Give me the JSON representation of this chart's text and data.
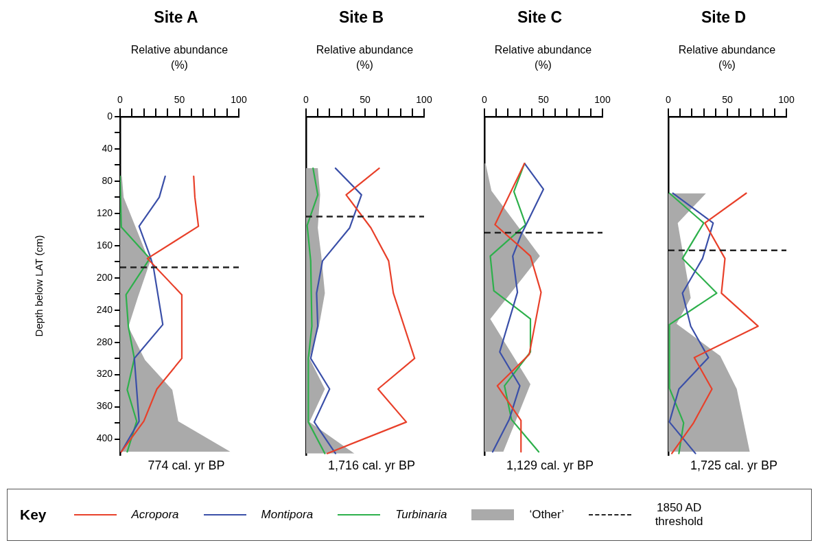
{
  "chart_data": [
    {
      "type": "line",
      "title": "Site A",
      "xlabel": "Relative abundance (%)",
      "ylabel": "Depth below LAT (cm)",
      "legend": "bottom",
      "legend_title": "Key",
      "grid": false,
      "xlim": [
        0,
        100
      ],
      "xticks": [
        0,
        {
          "value": 10,
          "label": null
        },
        {
          "value": 20,
          "label": null
        },
        {
          "value": 30,
          "label": null
        },
        {
          "value": 40,
          "label": null
        },
        50,
        {
          "value": 60,
          "label": null
        },
        {
          "value": 70,
          "label": null
        },
        {
          "value": 80,
          "label": null
        },
        {
          "value": 90,
          "label": null
        },
        100
      ],
      "ylim": [
        420,
        0
      ],
      "yticks": [
        0,
        {
          "value": 20,
          "label": null
        },
        40,
        {
          "value": 60,
          "label": null
        },
        80,
        {
          "value": 100,
          "label": null
        },
        120,
        {
          "value": 140,
          "label": null
        },
        160,
        {
          "value": 180,
          "label": null
        },
        200,
        {
          "value": 220,
          "label": null
        },
        240,
        {
          "value": 260,
          "label": null
        },
        280,
        {
          "value": 300,
          "label": null
        },
        320,
        {
          "value": 340,
          "label": null
        },
        360,
        {
          "value": 380,
          "label": null
        },
        400
      ],
      "series": [
        {
          "name": "‘Other’",
          "type": "area",
          "color": "#aaaaaa",
          "x": [
            0,
            1.5,
            3,
            25,
            15,
            7,
            21,
            44,
            49,
            93,
            0
          ],
          "values": [
            74,
            74,
            100,
            181,
            224,
            261,
            302,
            339,
            378,
            416,
            416
          ]
        },
        {
          "name": "Acropora",
          "color": "#e8402a",
          "x": [
            62,
            63,
            66,
            23,
            52,
            52,
            31,
            20,
            1
          ],
          "values": [
            74,
            100,
            136,
            176,
            221,
            300,
            338,
            378,
            416
          ]
        },
        {
          "name": "Montipora",
          "color": "#3a4fa8",
          "x": [
            38,
            33,
            16,
            25,
            28,
            36,
            12,
            16,
            1
          ],
          "values": [
            74,
            100,
            136,
            172,
            186,
            258,
            300,
            378,
            416
          ]
        },
        {
          "name": "Turbinaria",
          "color": "#2db04b",
          "x": [
            0,
            1,
            25,
            5,
            7,
            12,
            6,
            14,
            6
          ],
          "values": [
            74,
            137,
            176,
            221,
            261,
            300,
            339,
            378,
            416
          ]
        }
      ],
      "ref_lines": [
        {
          "axis": "y",
          "value": 187,
          "label": "1850 AD threshold",
          "color": "#222222",
          "line_style": "dashed"
        }
      ],
      "annotations": [
        "774 cal. yr BP"
      ]
    },
    {
      "type": "line",
      "title": "Site B",
      "xlabel": "Relative abundance (%)",
      "grid": false,
      "tick_labels": "x",
      "xlim": [
        0,
        100
      ],
      "xticks": [
        0,
        {
          "value": 10,
          "label": null
        },
        {
          "value": 20,
          "label": null
        },
        {
          "value": 30,
          "label": null
        },
        {
          "value": 40,
          "label": null
        },
        50,
        {
          "value": 60,
          "label": null
        },
        {
          "value": 70,
          "label": null
        },
        {
          "value": 80,
          "label": null
        },
        {
          "value": 90,
          "label": null
        },
        100
      ],
      "ylim": [
        420,
        0
      ],
      "series": [
        {
          "type": "area",
          "color": "#aaaaaa",
          "x": [
            0,
            10,
            12,
            10,
            13,
            16,
            11,
            3,
            16,
            3,
            41,
            0
          ],
          "values": [
            64,
            64,
            97,
            138,
            173,
            219,
            260,
            300,
            338,
            379,
            418,
            418
          ]
        },
        {
          "color": "#e8402a",
          "x": [
            62,
            34,
            55,
            70,
            74,
            92,
            61,
            85,
            18
          ],
          "values": [
            64,
            97,
            138,
            179,
            219,
            300,
            338,
            379,
            418
          ]
        },
        {
          "color": "#3a4fa8",
          "x": [
            25,
            47,
            37,
            14,
            9,
            10,
            4,
            20,
            7,
            25
          ],
          "values": [
            64,
            97,
            138,
            179,
            219,
            260,
            300,
            338,
            379,
            418
          ]
        },
        {
          "color": "#2db04b",
          "x": [
            6,
            10,
            1,
            4,
            5,
            2,
            2,
            16
          ],
          "values": [
            64,
            97,
            135,
            179,
            260,
            300,
            379,
            418
          ]
        }
      ],
      "ref_lines": [
        {
          "axis": "y",
          "value": 124,
          "color": "#222222",
          "line_style": "dashed"
        }
      ],
      "annotations": [
        "1,716 cal. yr BP"
      ]
    },
    {
      "type": "line",
      "title": "Site C",
      "xlabel": "Relative abundance (%)",
      "grid": false,
      "tick_labels": "x",
      "xlim": [
        0,
        100
      ],
      "xticks": [
        0,
        {
          "value": 10,
          "label": null
        },
        {
          "value": 20,
          "label": null
        },
        {
          "value": 30,
          "label": null
        },
        {
          "value": 40,
          "label": null
        },
        50,
        {
          "value": 60,
          "label": null
        },
        {
          "value": 70,
          "label": null
        },
        {
          "value": 80,
          "label": null
        },
        {
          "value": 90,
          "label": null
        },
        100
      ],
      "ylim": [
        420,
        0
      ],
      "series": [
        {
          "type": "area",
          "color": "#aaaaaa",
          "x": [
            0,
            1,
            6,
            47,
            5,
            39,
            16,
            0
          ],
          "values": [
            58,
            58,
            92,
            173,
            251,
            332,
            416,
            416
          ]
        },
        {
          "color": "#e8402a",
          "x": [
            34,
            9,
            39,
            48,
            38,
            11,
            31,
            31
          ],
          "values": [
            58,
            134,
            173,
            218,
            295,
            334,
            377,
            416
          ]
        },
        {
          "color": "#3a4fa8",
          "x": [
            34,
            50,
            31,
            24,
            28,
            13,
            30,
            21,
            7
          ],
          "values": [
            58,
            90,
            147,
            173,
            218,
            292,
            334,
            376,
            416
          ]
        },
        {
          "color": "#2db04b",
          "x": [
            34,
            25,
            35,
            5,
            8,
            39,
            39,
            17,
            23,
            46
          ],
          "values": [
            58,
            93,
            134,
            173,
            216,
            251,
            292,
            334,
            376,
            416
          ]
        }
      ],
      "ref_lines": [
        {
          "axis": "y",
          "value": 144,
          "color": "#222222",
          "line_style": "dashed"
        }
      ],
      "annotations": [
        "1,129 cal. yr BP"
      ]
    },
    {
      "type": "line",
      "title": "Site D",
      "xlabel": "Relative abundance (%)",
      "grid": false,
      "tick_labels": "x",
      "xlim": [
        0,
        100
      ],
      "xticks": [
        0,
        {
          "value": 10,
          "label": null
        },
        {
          "value": 20,
          "label": null
        },
        {
          "value": 30,
          "label": null
        },
        {
          "value": 40,
          "label": null
        },
        50,
        {
          "value": 60,
          "label": null
        },
        {
          "value": 70,
          "label": null
        },
        {
          "value": 80,
          "label": null
        },
        {
          "value": 90,
          "label": null
        },
        100
      ],
      "ylim": [
        420,
        0
      ],
      "series": [
        {
          "type": "area",
          "color": "#aaaaaa",
          "x": [
            0,
            32,
            8,
            19,
            7,
            44,
            58,
            69,
            0
          ],
          "values": [
            95,
            95,
            132,
            225,
            257,
            297,
            338,
            416,
            416
          ]
        },
        {
          "color": "#e8402a",
          "x": [
            66,
            31,
            48,
            45,
            76,
            22,
            37,
            21,
            3
          ],
          "values": [
            95,
            132,
            176,
            219,
            260,
            299,
            338,
            381,
            418
          ]
        },
        {
          "color": "#3a4fa8",
          "x": [
            4,
            38,
            29,
            12,
            19,
            34,
            9,
            1,
            23
          ],
          "values": [
            95,
            132,
            176,
            219,
            260,
            299,
            338,
            379,
            418
          ]
        },
        {
          "color": "#2db04b",
          "x": [
            1,
            30,
            12,
            41,
            1,
            1,
            13,
            9
          ],
          "values": [
            95,
            132,
            176,
            219,
            258,
            337,
            380,
            418
          ]
        }
      ],
      "ref_lines": [
        {
          "axis": "y",
          "value": 166,
          "color": "#222222",
          "line_style": "dashed"
        }
      ],
      "annotations": [
        "1,725 cal. yr BP"
      ]
    }
  ]
}
